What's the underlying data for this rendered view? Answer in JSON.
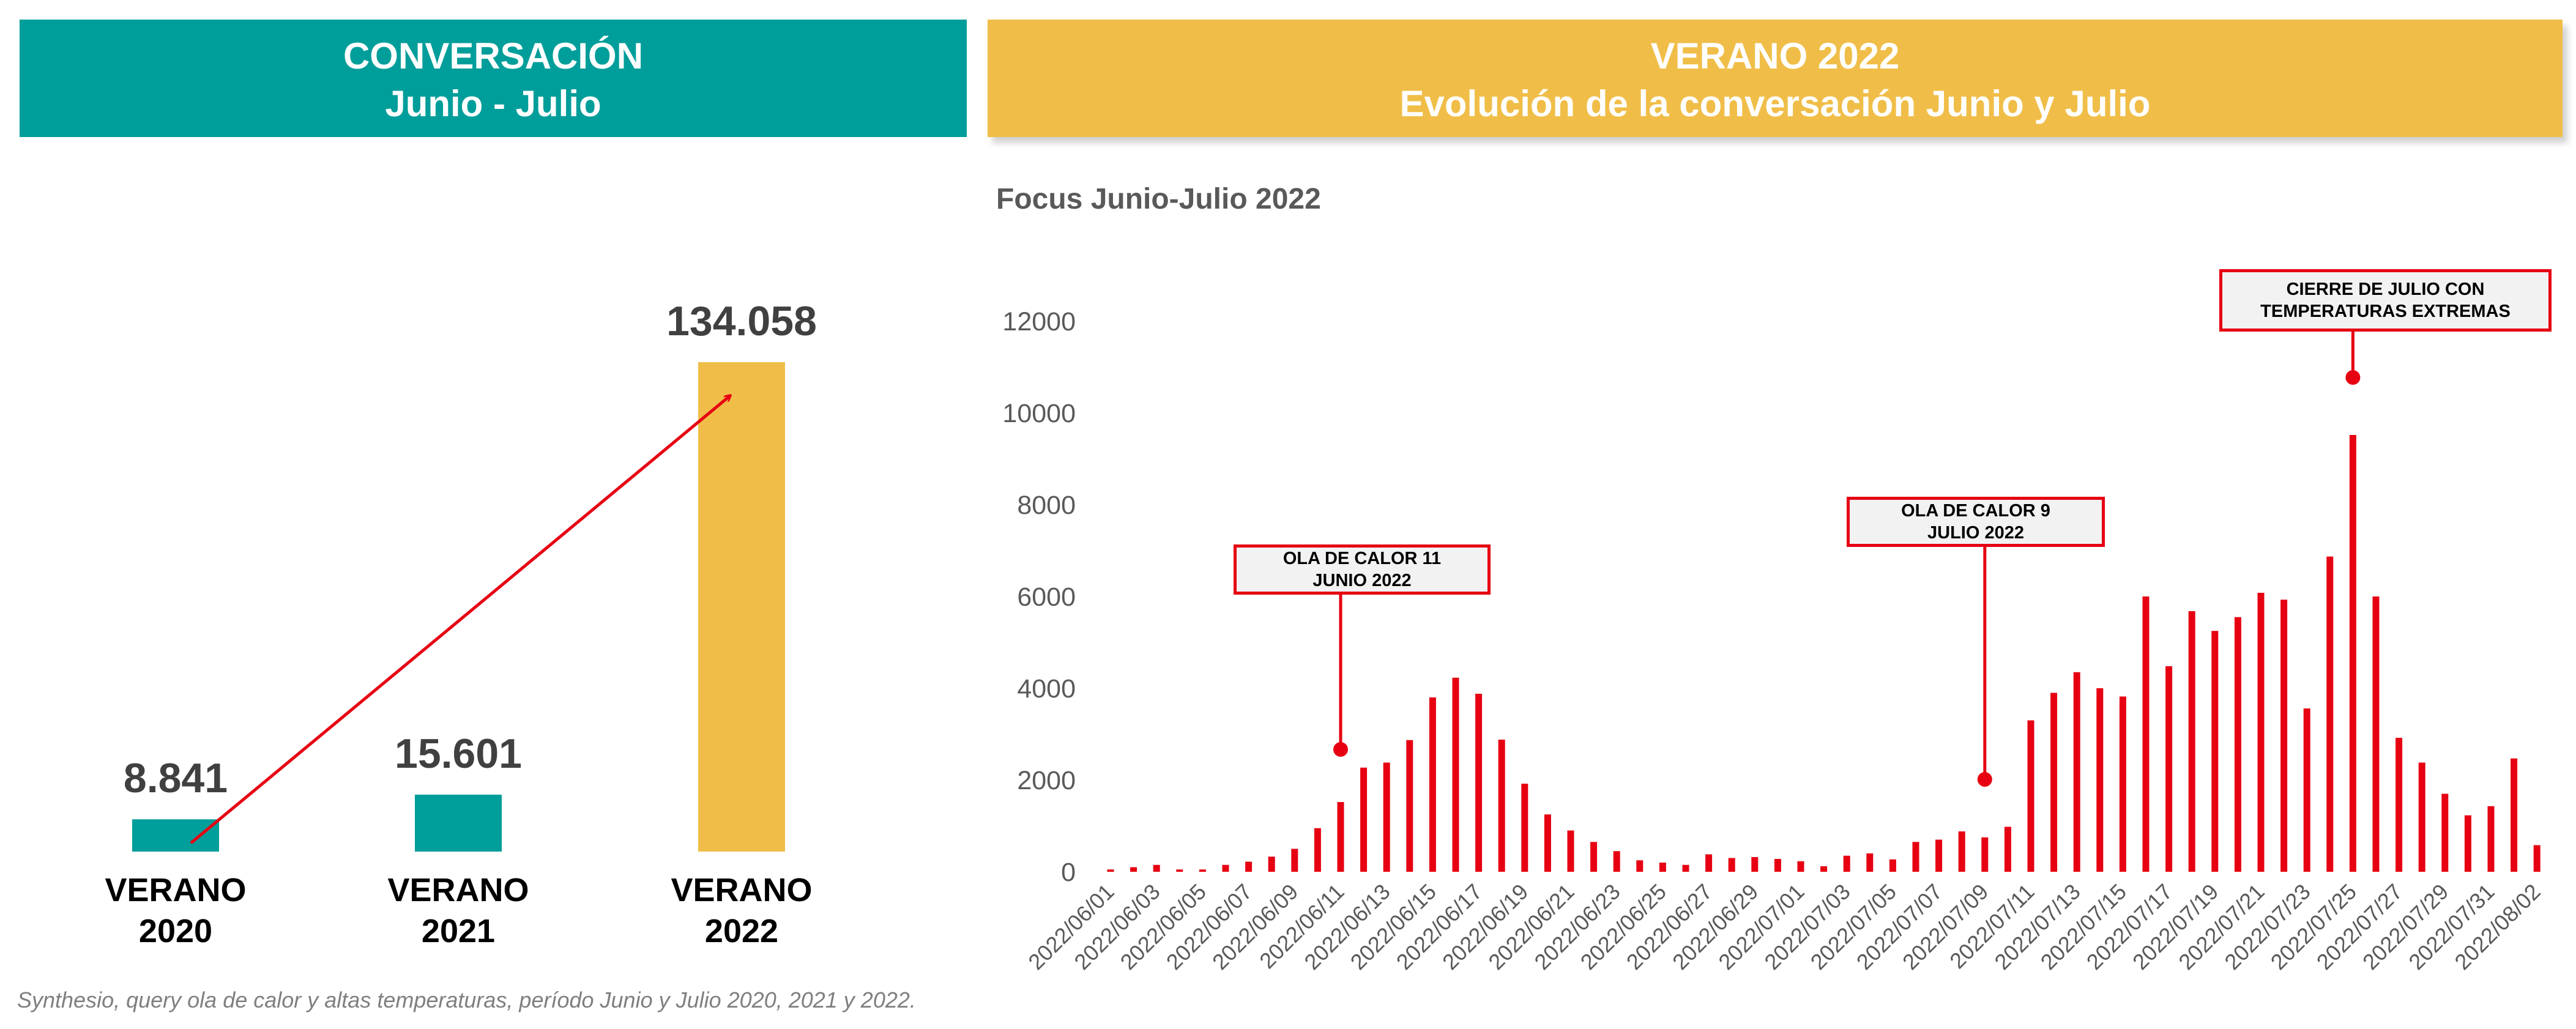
{
  "left_panel": {
    "header_line1": "CONVERSACIÓN",
    "header_line2": "Junio - Julio"
  },
  "right_panel": {
    "header_line1": "VERANO 2022",
    "header_line2": "Evolución de la conversación Junio y Julio",
    "subtitle": "Focus Junio-Julio 2022"
  },
  "source_note": "Synthesio, query ola de calor y altas temperaturas, período Junio y Julio 2020, 2021 y 2022.",
  "colors": {
    "teal": "#009e9a",
    "gold": "#f0be48",
    "red": "#e60012",
    "dark_text": "#404040"
  },
  "chart_data": [
    {
      "type": "bar",
      "categories": [
        [
          "VERANO",
          "2020"
        ],
        [
          "VERANO",
          "2021"
        ],
        [
          "VERANO",
          "2022"
        ]
      ],
      "values": [
        8841,
        15601,
        134058
      ],
      "value_labels": [
        "8.841",
        "15.601",
        "134.058"
      ],
      "bar_colors": [
        "#009e9a",
        "#009e9a",
        "#f0be48"
      ],
      "trend_arrow": true,
      "ylim": [
        0,
        134058
      ]
    },
    {
      "type": "bar",
      "title": "",
      "x": [
        "2022/06/01",
        "2022/06/02",
        "2022/06/03",
        "2022/06/04",
        "2022/06/05",
        "2022/06/06",
        "2022/06/07",
        "2022/06/08",
        "2022/06/09",
        "2022/06/10",
        "2022/06/11",
        "2022/06/12",
        "2022/06/13",
        "2022/06/14",
        "2022/06/15",
        "2022/06/16",
        "2022/06/17",
        "2022/06/18",
        "2022/06/19",
        "2022/06/20",
        "2022/06/21",
        "2022/06/22",
        "2022/06/23",
        "2022/06/24",
        "2022/06/25",
        "2022/06/26",
        "2022/06/27",
        "2022/06/28",
        "2022/06/29",
        "2022/06/30",
        "2022/07/01",
        "2022/07/02",
        "2022/07/03",
        "2022/07/04",
        "2022/07/05",
        "2022/07/06",
        "2022/07/07",
        "2022/07/08",
        "2022/07/09",
        "2022/07/10",
        "2022/07/11",
        "2022/07/12",
        "2022/07/13",
        "2022/07/14",
        "2022/07/15",
        "2022/07/16",
        "2022/07/17",
        "2022/07/18",
        "2022/07/19",
        "2022/07/20",
        "2022/07/21",
        "2022/07/22",
        "2022/07/23",
        "2022/07/24",
        "2022/07/25",
        "2022/07/26",
        "2022/07/27",
        "2022/07/28",
        "2022/07/29",
        "2022/07/30",
        "2022/07/31",
        "2022/08/01",
        "2022/08/02"
      ],
      "x_tick_labels": [
        "2022/06/01",
        "2022/06/03",
        "2022/06/05",
        "2022/06/07",
        "2022/06/09",
        "2022/06/11",
        "2022/06/13",
        "2022/06/15",
        "2022/06/17",
        "2022/06/19",
        "2022/06/21",
        "2022/06/23",
        "2022/06/25",
        "2022/06/27",
        "2022/06/29",
        "2022/07/01",
        "2022/07/03",
        "2022/07/05",
        "2022/07/07",
        "2022/07/09",
        "2022/07/11",
        "2022/07/13",
        "2022/07/15",
        "2022/07/17",
        "2022/07/19",
        "2022/07/21",
        "2022/07/23",
        "2022/07/25",
        "2022/07/27",
        "2022/07/29",
        "2022/07/31",
        "2022/08/02"
      ],
      "values": [
        50,
        100,
        150,
        50,
        50,
        150,
        220,
        330,
        500,
        950,
        1520,
        2270,
        2380,
        2870,
        3800,
        4230,
        3880,
        2880,
        1920,
        1250,
        900,
        650,
        450,
        250,
        200,
        150,
        380,
        300,
        320,
        280,
        230,
        120,
        350,
        400,
        270,
        650,
        700,
        880,
        750,
        980,
        3300,
        3900,
        4350,
        4000,
        3820,
        6000,
        4480,
        5680,
        5250,
        5550,
        6080,
        5930,
        3560,
        6870,
        9520,
        6000,
        2920,
        2380,
        1700,
        1230,
        1430,
        2470,
        580
      ],
      "ylim": [
        0,
        12000
      ],
      "yticks": [
        "0",
        "2000",
        "4000",
        "6000",
        "8000",
        "10000",
        "12000"
      ],
      "grid": false,
      "annotations": [
        {
          "text_line1": "OLA DE CALOR 11",
          "text_line2": "JUNIO 2022",
          "x": "2022/06/11"
        },
        {
          "text_line1": "OLA DE CALOR 9",
          "text_line2": "JULIO 2022",
          "x": "2022/07/09"
        },
        {
          "text_line1": "CIERRE DE JULIO CON",
          "text_line2": "TEMPERATURAS EXTREMAS",
          "x": "2022/07/25"
        }
      ]
    }
  ]
}
